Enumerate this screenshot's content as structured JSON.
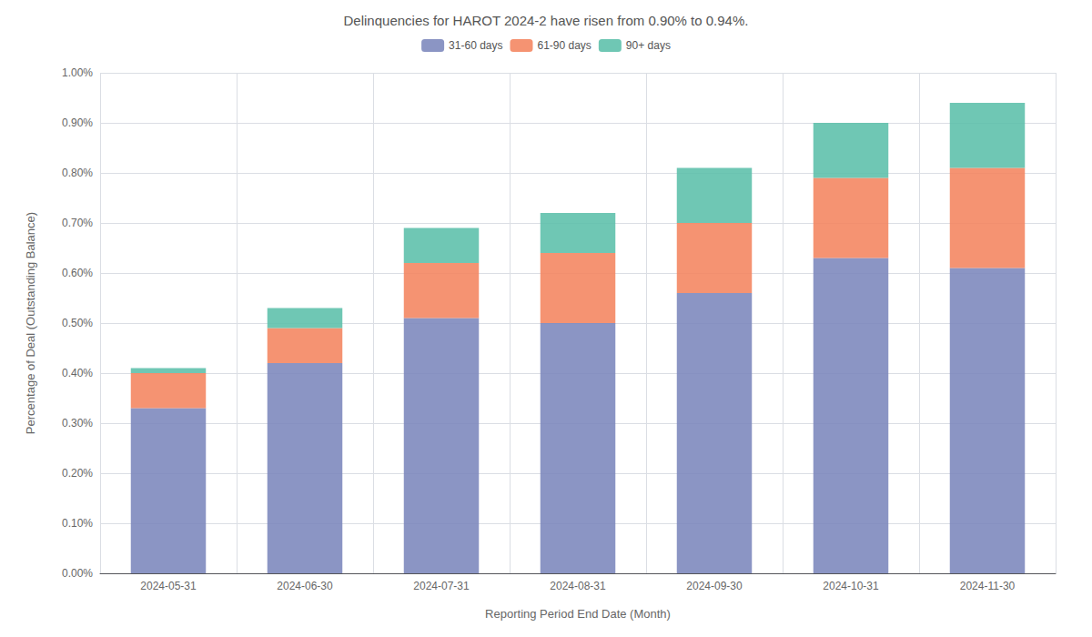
{
  "chart_data": {
    "type": "bar",
    "title": "Delinquencies for HAROT 2024-2 have risen from 0.90% to 0.94%.",
    "xlabel": "Reporting Period End Date (Month)",
    "ylabel": "Percentage of Deal (Outstanding Balance)",
    "categories": [
      "2024-05-31",
      "2024-06-30",
      "2024-07-31",
      "2024-08-31",
      "2024-09-30",
      "2024-10-31",
      "2024-11-30"
    ],
    "series": [
      {
        "name": "31-60 days",
        "color": "#7b86bc",
        "values": [
          0.0033,
          0.0042,
          0.0051,
          0.005,
          0.0056,
          0.0063,
          0.0061
        ]
      },
      {
        "name": "61-90 days",
        "color": "#f4845f",
        "values": [
          0.0007,
          0.0007,
          0.0011,
          0.0014,
          0.0014,
          0.0016,
          0.002
        ]
      },
      {
        "name": "90+ days",
        "color": "#5bbfaa",
        "values": [
          0.0001,
          0.0004,
          0.0007,
          0.0008,
          0.0011,
          0.0011,
          0.0013
        ]
      }
    ],
    "stacked": true,
    "ylim": [
      0,
      0.01
    ],
    "yticks": [
      {
        "value": 0,
        "label": "0.00%"
      },
      {
        "value": 0.001,
        "label": "0.10%"
      },
      {
        "value": 0.002,
        "label": "0.20%"
      },
      {
        "value": 0.003,
        "label": "0.30%"
      },
      {
        "value": 0.004,
        "label": "0.40%"
      },
      {
        "value": 0.005,
        "label": "0.50%"
      },
      {
        "value": 0.006,
        "label": "0.60%"
      },
      {
        "value": 0.007,
        "label": "0.70%"
      },
      {
        "value": 0.008,
        "label": "0.80%"
      },
      {
        "value": 0.009,
        "label": "0.90%"
      },
      {
        "value": 0.01,
        "label": "1.00%"
      }
    ],
    "grid": true,
    "legend": "upper center"
  }
}
